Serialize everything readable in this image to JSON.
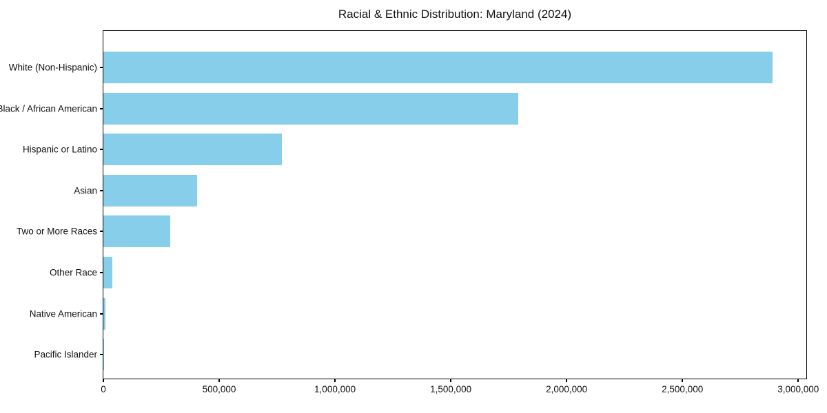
{
  "title": "Racial & Ethnic Distribution: Maryland (2024)",
  "chart_data": {
    "type": "bar",
    "orientation": "horizontal",
    "title": "Racial & Ethnic Distribution: Maryland (2024)",
    "xlabel": "",
    "ylabel": "",
    "categories": [
      "White (Non-Hispanic)",
      "Black / African American",
      "Hispanic or Latino",
      "Asian",
      "Two or More Races",
      "Other Race",
      "Native American",
      "Pacific Islander"
    ],
    "values": [
      2890000,
      1792000,
      771000,
      404000,
      288000,
      39000,
      9000,
      3000
    ],
    "bar_color": "#87CEEB",
    "xlim": [
      0,
      3035000
    ],
    "x_ticks": [
      0,
      500000,
      1000000,
      1500000,
      2000000,
      2500000,
      3000000
    ],
    "x_tick_labels": [
      "0",
      "500,000",
      "1,000,000",
      "1,500,000",
      "2,000,000",
      "2,500,000",
      "3,000,000"
    ],
    "grid": false,
    "legend": null
  }
}
